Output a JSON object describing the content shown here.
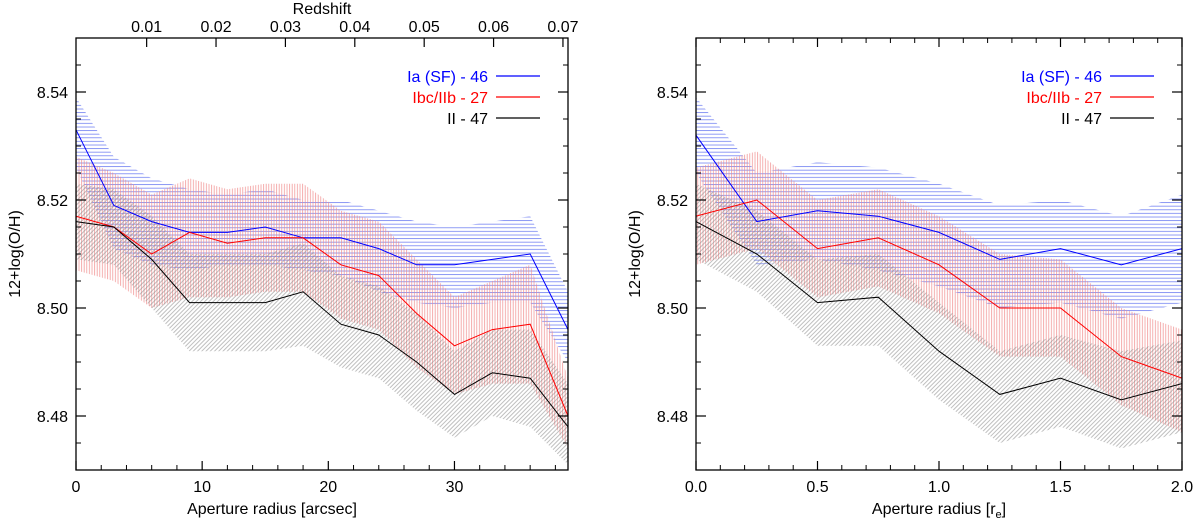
{
  "chart_data": [
    {
      "type": "line",
      "panel": "left",
      "xlabel": "Aperture radius [arcsec]",
      "ylabel": "12+log(O/H)",
      "xlim": [
        0,
        39
      ],
      "ylim": [
        8.47,
        8.55
      ],
      "xticks": [
        0,
        10,
        20,
        30
      ],
      "xtick_labels": [
        "0",
        "10",
        "20",
        "30"
      ],
      "yticks": [
        8.48,
        8.5,
        8.52,
        8.54
      ],
      "ytick_labels": [
        "8.48",
        "8.50",
        "8.52",
        "8.54"
      ],
      "top_axis": {
        "label": "Redshift",
        "ticks": [
          0.01,
          0.02,
          0.03,
          0.04,
          0.05,
          0.06,
          0.07
        ],
        "tick_labels": [
          "0.01",
          "0.02",
          "0.03",
          "0.04",
          "0.05",
          "0.06",
          "0.07"
        ],
        "x_positions": [
          5.6,
          11.1,
          16.6,
          22.1,
          27.6,
          33.1,
          38.6
        ]
      },
      "legend": "top-right",
      "series": [
        {
          "name": "Ia (SF) - 46",
          "color": "#0000ff",
          "x": [
            0,
            3,
            6,
            9,
            12,
            15,
            18,
            21,
            24,
            27,
            30,
            33,
            36,
            39
          ],
          "y": [
            8.533,
            8.519,
            8.516,
            8.514,
            8.514,
            8.515,
            8.513,
            8.513,
            8.511,
            8.508,
            8.508,
            8.509,
            8.51,
            8.496
          ],
          "lower": [
            8.526,
            8.511,
            8.508,
            8.507,
            8.508,
            8.508,
            8.507,
            8.506,
            8.503,
            8.501,
            8.5,
            8.501,
            8.501,
            8.49
          ],
          "upper": [
            8.539,
            8.528,
            8.524,
            8.522,
            8.521,
            8.522,
            8.52,
            8.52,
            8.518,
            8.516,
            8.515,
            8.516,
            8.517,
            8.503
          ]
        },
        {
          "name": "Ibc/IIb - 27",
          "color": "#ff0000",
          "x": [
            0,
            3,
            6,
            9,
            12,
            15,
            18,
            21,
            24,
            27,
            30,
            33,
            36,
            39
          ],
          "y": [
            8.517,
            8.515,
            8.51,
            8.514,
            8.512,
            8.513,
            8.513,
            8.508,
            8.506,
            8.499,
            8.493,
            8.496,
            8.497,
            8.48
          ],
          "lower": [
            8.507,
            8.505,
            8.5,
            8.502,
            8.502,
            8.503,
            8.503,
            8.498,
            8.496,
            8.489,
            8.484,
            8.486,
            8.486,
            8.474
          ],
          "upper": [
            8.528,
            8.525,
            8.521,
            8.524,
            8.522,
            8.523,
            8.523,
            8.518,
            8.516,
            8.509,
            8.502,
            8.505,
            8.508,
            8.487
          ]
        },
        {
          "name": "II - 47",
          "color": "#000000",
          "x": [
            0,
            3,
            6,
            9,
            12,
            15,
            18,
            21,
            24,
            27,
            30,
            33,
            36,
            39
          ],
          "y": [
            8.516,
            8.515,
            8.509,
            8.501,
            8.501,
            8.501,
            8.503,
            8.497,
            8.495,
            8.49,
            8.484,
            8.488,
            8.487,
            8.478
          ],
          "lower": [
            8.509,
            8.508,
            8.5,
            8.492,
            8.492,
            8.492,
            8.493,
            8.489,
            8.487,
            8.481,
            8.476,
            8.48,
            8.478,
            8.471
          ],
          "upper": [
            8.523,
            8.522,
            8.517,
            8.51,
            8.51,
            8.51,
            8.512,
            8.506,
            8.504,
            8.499,
            8.492,
            8.496,
            8.496,
            8.486
          ]
        }
      ]
    },
    {
      "type": "line",
      "panel": "right",
      "xlabel": "Aperture radius [r",
      "xlabel_subscript": "e",
      "xlabel_suffix": "]",
      "ylabel": "12+log(O/H)",
      "xlim": [
        0,
        2
      ],
      "ylim": [
        8.47,
        8.55
      ],
      "xticks": [
        0,
        0.5,
        1,
        1.5,
        2
      ],
      "xtick_labels": [
        "0.0",
        "0.5",
        "1.0",
        "1.5",
        "2.0"
      ],
      "yticks": [
        8.48,
        8.5,
        8.52,
        8.54
      ],
      "ytick_labels": [
        "8.48",
        "8.50",
        "8.52",
        "8.54"
      ],
      "legend": "top-right",
      "series": [
        {
          "name": "Ia (SF) - 46",
          "color": "#0000ff",
          "x": [
            0,
            0.25,
            0.5,
            0.75,
            1.0,
            1.25,
            1.5,
            1.75,
            2.0
          ],
          "y": [
            8.532,
            8.516,
            8.518,
            8.517,
            8.514,
            8.509,
            8.511,
            8.508,
            8.511
          ],
          "lower": [
            8.525,
            8.508,
            8.509,
            8.507,
            8.504,
            8.5,
            8.501,
            8.498,
            8.501
          ],
          "upper": [
            8.539,
            8.525,
            8.527,
            8.526,
            8.523,
            8.519,
            8.52,
            8.517,
            8.521
          ]
        },
        {
          "name": "Ibc/IIb - 27",
          "color": "#ff0000",
          "x": [
            0,
            0.25,
            0.5,
            0.75,
            1.0,
            1.25,
            1.5,
            1.75,
            2.0
          ],
          "y": [
            8.517,
            8.52,
            8.511,
            8.513,
            8.508,
            8.5,
            8.5,
            8.491,
            8.487
          ],
          "lower": [
            8.508,
            8.511,
            8.502,
            8.504,
            8.499,
            8.491,
            8.491,
            8.482,
            8.477
          ],
          "upper": [
            8.526,
            8.529,
            8.52,
            8.522,
            8.517,
            8.51,
            8.509,
            8.5,
            8.496
          ]
        },
        {
          "name": "II - 47",
          "color": "#000000",
          "x": [
            0,
            0.25,
            0.5,
            0.75,
            1.0,
            1.25,
            1.5,
            1.75,
            2.0
          ],
          "y": [
            8.516,
            8.51,
            8.501,
            8.502,
            8.492,
            8.484,
            8.487,
            8.483,
            8.486
          ],
          "lower": [
            8.509,
            8.503,
            8.493,
            8.493,
            8.483,
            8.475,
            8.478,
            8.474,
            8.477
          ],
          "upper": [
            8.523,
            8.518,
            8.509,
            8.51,
            8.501,
            8.492,
            8.495,
            8.492,
            8.494
          ]
        }
      ]
    }
  ]
}
